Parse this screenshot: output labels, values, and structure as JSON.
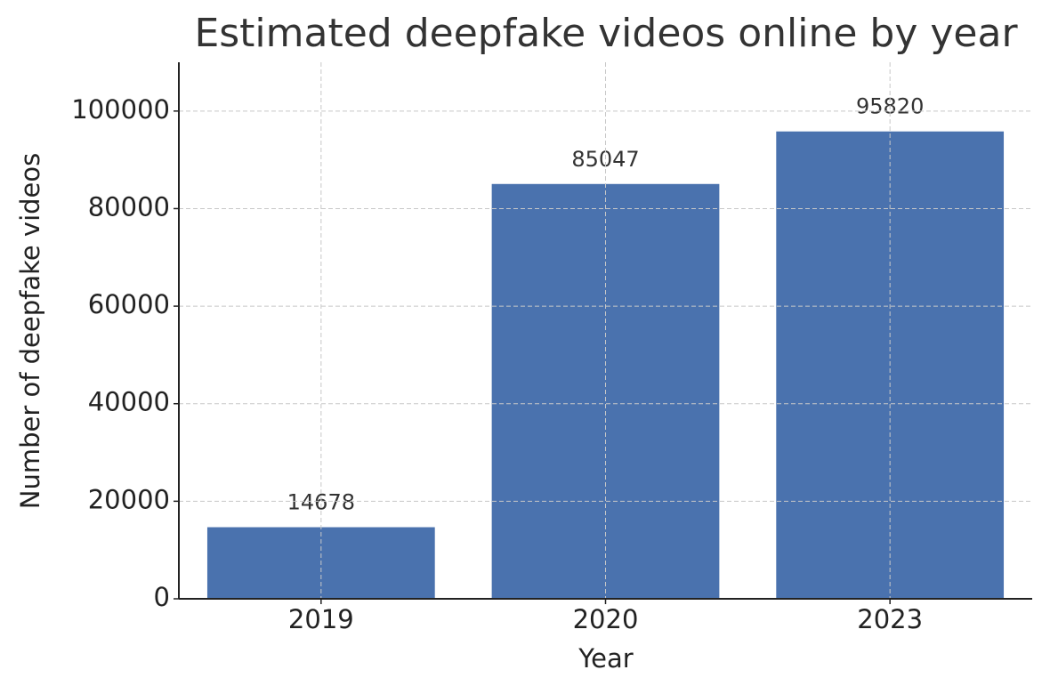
{
  "chart_data": {
    "type": "bar",
    "title": "Estimated deepfake videos online by year",
    "x_label": "Year",
    "y_label": "Number of deepfake videos",
    "categories": [
      "2019",
      "2020",
      "2023"
    ],
    "values": [
      14678,
      85047,
      95820
    ],
    "color": "#4a72ae",
    "ylim": [
      0,
      110000
    ],
    "yticks": [
      0,
      20000,
      40000,
      60000,
      80000,
      100000
    ],
    "grid": true
  }
}
